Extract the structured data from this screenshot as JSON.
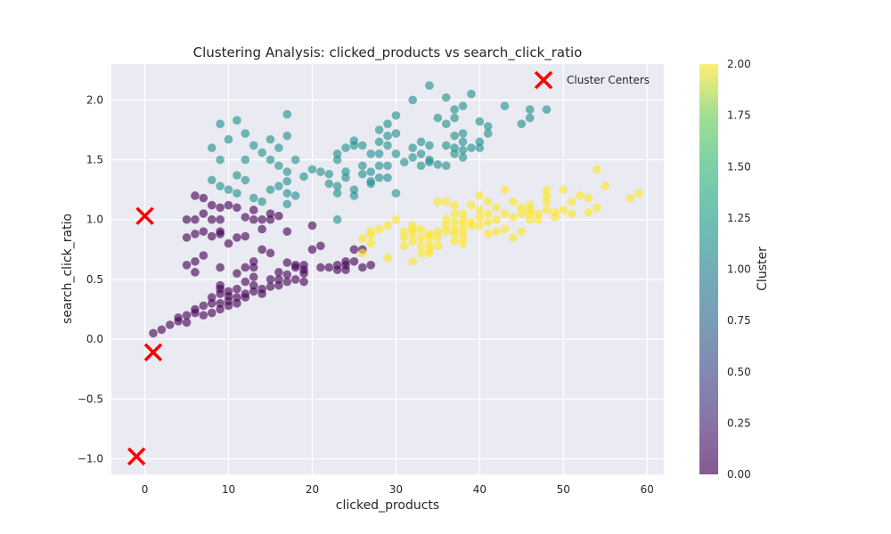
{
  "chart_data": {
    "type": "scatter",
    "title": "Clustering Analysis: clicked_products vs search_click_ratio",
    "xlabel": "clicked_products",
    "ylabel": "search_click_ratio",
    "xlim": [
      -4,
      62
    ],
    "ylim": [
      -1.13,
      2.3
    ],
    "xticks": [
      0,
      10,
      20,
      30,
      40,
      50,
      60
    ],
    "yticks": [
      -1.0,
      -0.5,
      0.0,
      0.5,
      1.0,
      1.5,
      2.0
    ],
    "xtick_labels": [
      "0",
      "10",
      "20",
      "30",
      "40",
      "50",
      "60"
    ],
    "ytick_labels": [
      "−1.0",
      "−0.5",
      "0.0",
      "0.5",
      "1.0",
      "1.5",
      "2.0"
    ],
    "grid": true,
    "colormap": "viridis",
    "colorbar": {
      "label": "Cluster",
      "range": [
        0,
        2
      ],
      "ticks": [
        0,
        0.25,
        0.5,
        0.75,
        1.0,
        1.25,
        1.5,
        1.75,
        2.0
      ],
      "tick_labels": [
        "0.00",
        "0.25",
        "0.50",
        "0.75",
        "1.00",
        "1.25",
        "1.50",
        "1.75",
        "2.00"
      ]
    },
    "legend": {
      "position": "top-right",
      "entries": [
        "Cluster Centers"
      ]
    },
    "cluster_centers": [
      [
        0,
        1.03
      ],
      [
        1,
        -0.11
      ],
      [
        -1,
        -0.98
      ]
    ],
    "series": [
      {
        "cluster": 0,
        "color": "#440154",
        "points": [
          [
            1,
            0.05
          ],
          [
            2,
            0.08
          ],
          [
            3,
            0.12
          ],
          [
            4,
            0.15
          ],
          [
            4,
            0.18
          ],
          [
            5,
            0.2
          ],
          [
            5,
            0.14
          ],
          [
            6,
            0.22
          ],
          [
            6,
            0.25
          ],
          [
            7,
            0.2
          ],
          [
            7,
            0.28
          ],
          [
            8,
            0.3
          ],
          [
            8,
            0.22
          ],
          [
            8,
            0.35
          ],
          [
            9,
            0.25
          ],
          [
            9,
            0.3
          ],
          [
            9,
            0.38
          ],
          [
            9,
            0.42
          ],
          [
            9,
            0.45
          ],
          [
            10,
            0.28
          ],
          [
            10,
            0.32
          ],
          [
            10,
            0.36
          ],
          [
            10,
            0.4
          ],
          [
            11,
            0.3
          ],
          [
            11,
            0.35
          ],
          [
            11,
            0.42
          ],
          [
            12,
            0.35
          ],
          [
            12,
            0.38
          ],
          [
            12,
            0.48
          ],
          [
            13,
            0.4
          ],
          [
            13,
            0.45
          ],
          [
            13,
            0.52
          ],
          [
            14,
            0.38
          ],
          [
            14,
            0.42
          ],
          [
            15,
            0.44
          ],
          [
            15,
            0.5
          ],
          [
            16,
            0.45
          ],
          [
            16,
            0.5
          ],
          [
            16,
            0.56
          ],
          [
            17,
            0.48
          ],
          [
            17,
            0.54
          ],
          [
            18,
            0.5
          ],
          [
            18,
            0.6
          ],
          [
            19,
            0.48
          ],
          [
            19,
            0.55
          ],
          [
            19,
            0.62
          ],
          [
            21,
            0.6
          ],
          [
            22,
            0.6
          ],
          [
            23,
            0.62
          ],
          [
            24,
            0.58
          ],
          [
            24,
            0.62
          ],
          [
            25,
            0.65
          ],
          [
            26,
            0.6
          ],
          [
            27,
            0.62
          ],
          [
            25,
            0.75
          ],
          [
            26,
            0.75
          ],
          [
            5,
            0.62
          ],
          [
            6,
            0.65
          ],
          [
            6,
            0.56
          ],
          [
            7,
            0.7
          ],
          [
            9,
            0.6
          ],
          [
            11,
            0.55
          ],
          [
            13,
            0.6
          ],
          [
            13,
            0.65
          ],
          [
            14,
            0.75
          ],
          [
            15,
            0.72
          ],
          [
            17,
            0.64
          ],
          [
            18,
            0.62
          ],
          [
            20,
            0.75
          ],
          [
            21,
            0.78
          ],
          [
            5,
            0.85
          ],
          [
            6,
            0.88
          ],
          [
            7,
            0.9
          ],
          [
            8,
            0.86
          ],
          [
            9,
            0.88
          ],
          [
            9,
            0.9
          ],
          [
            10,
            0.8
          ],
          [
            11,
            0.85
          ],
          [
            12,
            0.86
          ],
          [
            14,
            0.92
          ],
          [
            17,
            0.9
          ],
          [
            20,
            0.95
          ],
          [
            5,
            1.0
          ],
          [
            6,
            1.0
          ],
          [
            6,
            1.2
          ],
          [
            7,
            1.18
          ],
          [
            7,
            1.05
          ],
          [
            8,
            1.12
          ],
          [
            8,
            1.0
          ],
          [
            9,
            1.1
          ],
          [
            9,
            1.0
          ],
          [
            10,
            1.12
          ],
          [
            11,
            1.1
          ],
          [
            12,
            1.02
          ],
          [
            13,
            1.0
          ],
          [
            13,
            1.08
          ],
          [
            14,
            1.0
          ],
          [
            15,
            1.05
          ],
          [
            15,
            1.0
          ],
          [
            16,
            1.03
          ],
          [
            12,
            0.6
          ],
          [
            19,
            0.58
          ],
          [
            23,
            0.58
          ],
          [
            24,
            0.65
          ]
        ]
      },
      {
        "cluster": 1,
        "color": "#21918c",
        "points": [
          [
            8,
            1.6
          ],
          [
            9,
            1.8
          ],
          [
            9,
            1.5
          ],
          [
            10,
            1.67
          ],
          [
            11,
            1.83
          ],
          [
            12,
            1.72
          ],
          [
            12,
            1.5
          ],
          [
            13,
            1.62
          ],
          [
            14,
            1.56
          ],
          [
            15,
            1.67
          ],
          [
            15,
            1.5
          ],
          [
            16,
            1.6
          ],
          [
            17,
            1.7
          ],
          [
            17,
            1.88
          ],
          [
            18,
            1.5
          ],
          [
            16,
            1.45
          ],
          [
            17,
            1.4
          ],
          [
            8,
            1.33
          ],
          [
            9,
            1.28
          ],
          [
            10,
            1.25
          ],
          [
            11,
            1.37
          ],
          [
            12,
            1.33
          ],
          [
            11,
            1.22
          ],
          [
            13,
            1.18
          ],
          [
            14,
            1.15
          ],
          [
            15,
            1.25
          ],
          [
            16,
            1.28
          ],
          [
            17,
            1.32
          ],
          [
            17,
            1.22
          ],
          [
            18,
            1.2
          ],
          [
            19,
            1.36
          ],
          [
            20,
            1.42
          ],
          [
            21,
            1.4
          ],
          [
            22,
            1.38
          ],
          [
            22,
            1.3
          ],
          [
            23,
            1.22
          ],
          [
            23,
            1.28
          ],
          [
            24,
            1.35
          ],
          [
            24,
            1.4
          ],
          [
            25,
            1.25
          ],
          [
            25,
            1.2
          ],
          [
            23,
            1.0
          ],
          [
            17,
            1.13
          ],
          [
            23,
            1.5
          ],
          [
            23,
            1.55
          ],
          [
            24,
            1.6
          ],
          [
            25,
            1.62
          ],
          [
            25,
            1.66
          ],
          [
            26,
            1.62
          ],
          [
            27,
            1.55
          ],
          [
            26,
            1.45
          ],
          [
            27,
            1.4
          ],
          [
            27,
            1.3
          ],
          [
            28,
            1.35
          ],
          [
            28,
            1.45
          ],
          [
            28,
            1.55
          ],
          [
            28,
            1.65
          ],
          [
            28,
            1.75
          ],
          [
            29,
            1.62
          ],
          [
            29,
            1.7
          ],
          [
            29,
            1.8
          ],
          [
            30,
            1.72
          ],
          [
            30,
            1.55
          ],
          [
            30,
            1.87
          ],
          [
            29,
            1.45
          ],
          [
            29,
            1.35
          ],
          [
            30,
            1.22
          ],
          [
            31,
            1.48
          ],
          [
            32,
            1.6
          ],
          [
            32,
            1.52
          ],
          [
            33,
            1.65
          ],
          [
            33,
            1.55
          ],
          [
            33,
            1.45
          ],
          [
            34,
            1.62
          ],
          [
            34,
            1.5
          ],
          [
            34,
            1.48
          ],
          [
            35,
            1.46
          ],
          [
            35,
            1.85
          ],
          [
            36,
            1.8
          ],
          [
            36,
            1.45
          ],
          [
            36,
            1.62
          ],
          [
            37,
            1.7
          ],
          [
            37,
            1.6
          ],
          [
            37,
            1.55
          ],
          [
            37,
            1.85
          ],
          [
            37,
            1.92
          ],
          [
            38,
            1.58
          ],
          [
            38,
            1.52
          ],
          [
            38,
            1.65
          ],
          [
            38,
            1.72
          ],
          [
            38,
            1.95
          ],
          [
            39,
            1.6
          ],
          [
            39,
            2.05
          ],
          [
            40,
            1.65
          ],
          [
            40,
            1.82
          ],
          [
            40,
            1.6
          ],
          [
            41,
            1.72
          ],
          [
            41,
            1.78
          ],
          [
            43,
            1.95
          ],
          [
            45,
            1.8
          ],
          [
            46,
            1.85
          ],
          [
            46,
            1.92
          ],
          [
            48,
            1.92
          ],
          [
            32,
            2.0
          ],
          [
            34,
            2.12
          ],
          [
            36,
            2.02
          ],
          [
            26,
            1.38
          ],
          [
            27,
            1.32
          ]
        ]
      },
      {
        "cluster": 2,
        "color": "#fde725",
        "points": [
          [
            26,
            0.84
          ],
          [
            27,
            0.8
          ],
          [
            27,
            0.87
          ],
          [
            27,
            0.9
          ],
          [
            28,
            0.92
          ],
          [
            29,
            0.95
          ],
          [
            30,
            1.0
          ],
          [
            29,
            0.68
          ],
          [
            31,
            0.85
          ],
          [
            31,
            0.9
          ],
          [
            32,
            0.82
          ],
          [
            32,
            0.88
          ],
          [
            32,
            0.92
          ],
          [
            32,
            0.95
          ],
          [
            33,
            0.78
          ],
          [
            33,
            0.85
          ],
          [
            33,
            0.92
          ],
          [
            34,
            0.75
          ],
          [
            34,
            0.8
          ],
          [
            34,
            0.86
          ],
          [
            34,
            0.88
          ],
          [
            35,
            0.78
          ],
          [
            35,
            0.85
          ],
          [
            35,
            0.9
          ],
          [
            35,
            1.15
          ],
          [
            36,
            0.9
          ],
          [
            36,
            0.95
          ],
          [
            36,
            1.0
          ],
          [
            36,
            1.15
          ],
          [
            37,
            0.82
          ],
          [
            37,
            0.88
          ],
          [
            37,
            0.92
          ],
          [
            37,
            0.98
          ],
          [
            37,
            1.05
          ],
          [
            37,
            1.12
          ],
          [
            38,
            0.8
          ],
          [
            38,
            0.85
          ],
          [
            38,
            0.9
          ],
          [
            38,
            0.95
          ],
          [
            38,
            1.0
          ],
          [
            38,
            1.05
          ],
          [
            39,
            0.95
          ],
          [
            39,
            1.12
          ],
          [
            40,
            0.95
          ],
          [
            40,
            1.02
          ],
          [
            40,
            1.08
          ],
          [
            40,
            1.2
          ],
          [
            41,
            0.88
          ],
          [
            41,
            0.98
          ],
          [
            41,
            1.05
          ],
          [
            41,
            1.15
          ],
          [
            42,
            0.9
          ],
          [
            42,
            1.0
          ],
          [
            42,
            1.1
          ],
          [
            43,
            0.92
          ],
          [
            43,
            1.05
          ],
          [
            43,
            1.25
          ],
          [
            44,
            1.02
          ],
          [
            44,
            1.15
          ],
          [
            45,
            0.9
          ],
          [
            45,
            1.05
          ],
          [
            45,
            1.1
          ],
          [
            46,
            1.05
          ],
          [
            46,
            1.08
          ],
          [
            46,
            1.12
          ],
          [
            47,
            1.0
          ],
          [
            47,
            1.05
          ],
          [
            48,
            1.08
          ],
          [
            48,
            1.15
          ],
          [
            48,
            1.2
          ],
          [
            48,
            1.25
          ],
          [
            49,
            1.02
          ],
          [
            49,
            1.06
          ],
          [
            50,
            1.08
          ],
          [
            50,
            1.25
          ],
          [
            51,
            1.05
          ],
          [
            51,
            1.15
          ],
          [
            52,
            1.2
          ],
          [
            53,
            1.06
          ],
          [
            53,
            1.18
          ],
          [
            54,
            1.1
          ],
          [
            54,
            1.42
          ],
          [
            55,
            1.28
          ],
          [
            58,
            1.18
          ],
          [
            59,
            1.22
          ],
          [
            31,
            0.78
          ],
          [
            32,
            0.65
          ],
          [
            33,
            0.72
          ],
          [
            34,
            0.72
          ],
          [
            39,
            0.98
          ],
          [
            44,
            0.85
          ],
          [
            46,
            1.0
          ],
          [
            26,
            0.72
          ]
        ]
      }
    ]
  }
}
